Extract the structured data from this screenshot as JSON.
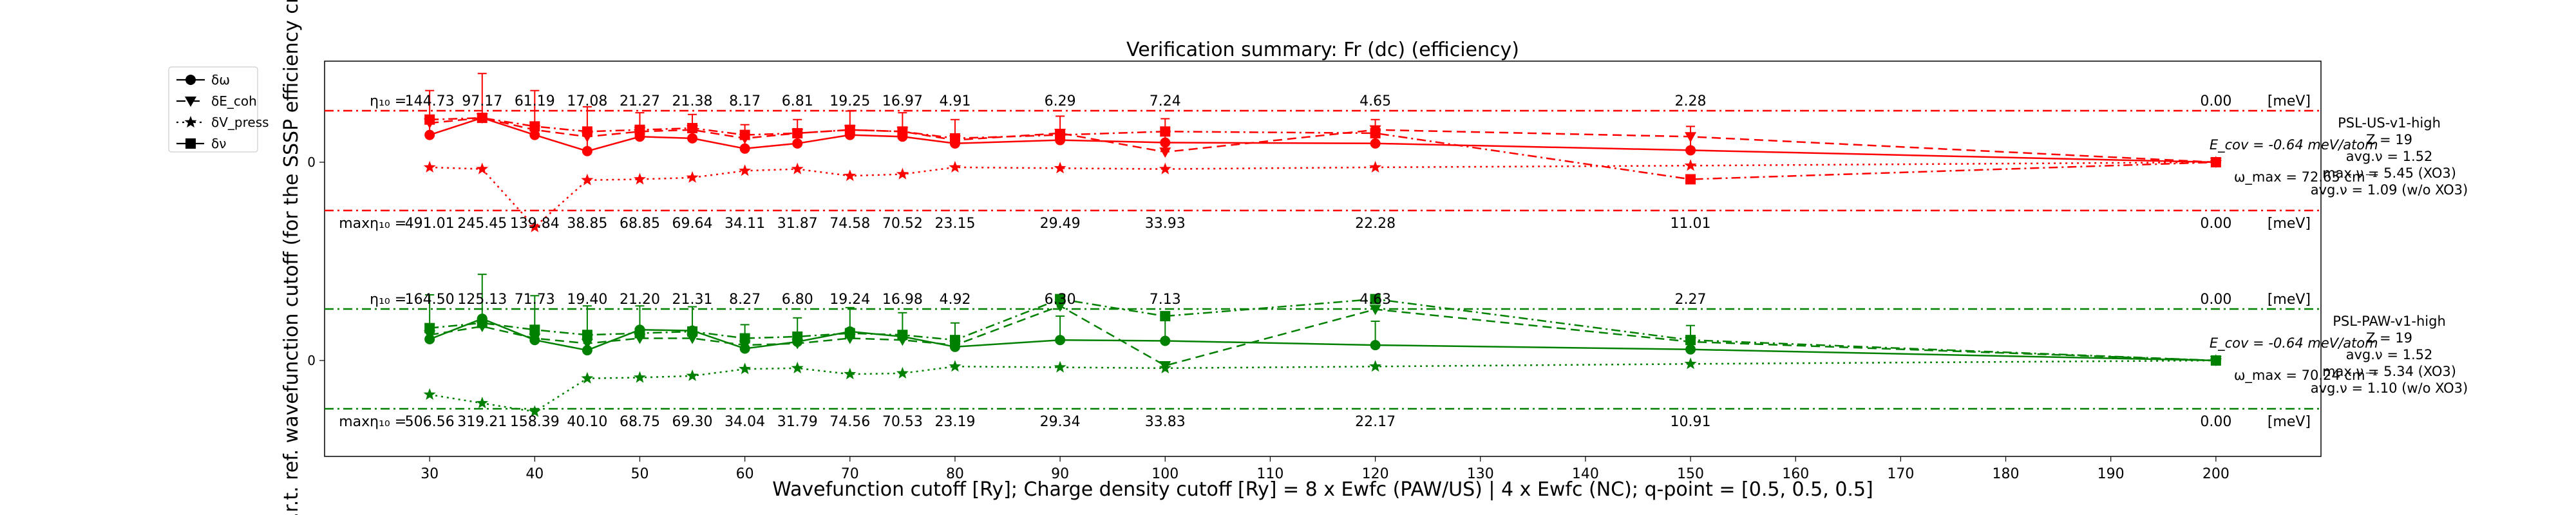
{
  "chart_data": {
    "type": "line",
    "title": "Verification summary: Fr (dc) (efficiency)",
    "xlabel": "Wavefunction cutoff [Ry]; Charge density cutoff [Ry] = 8 x Ewfc (PAW/US) | 4 x Ewfc (NC); q-point = [0.5, 0.5, 0.5]",
    "ylabel": "w.r.t. ref. wavefunction cutoff (for the SSSP efficiency crit",
    "xlim": [
      20,
      210
    ],
    "x_ticks": [
      30,
      40,
      50,
      60,
      70,
      80,
      90,
      100,
      110,
      120,
      130,
      140,
      150,
      160,
      170,
      180,
      190,
      200
    ],
    "y_tick_labels": [
      "0",
      "0"
    ],
    "legend": {
      "placement": "top-left-outside",
      "entries": [
        {
          "label": "δω",
          "style": "solid",
          "marker": "circle"
        },
        {
          "label": "δE_coh",
          "style": "dashed",
          "marker": "triangle"
        },
        {
          "label": "δV_press",
          "style": "dotted",
          "marker": "star"
        },
        {
          "label": "δν",
          "style": "dashdot",
          "marker": "square"
        }
      ]
    },
    "x": [
      30,
      35,
      40,
      45,
      50,
      55,
      60,
      65,
      70,
      75,
      80,
      90,
      100,
      120,
      150,
      200
    ],
    "panels": [
      {
        "name": "PSL-US-v1-high",
        "color": "#ff0000",
        "info": [
          "PSL-US-v1-high",
          "Z = 19",
          "avg.ν = 1.52",
          "max.ν = 5.45 (XO3)",
          "avg.ν = 1.09 (w/o XO3)"
        ],
        "ecov_label": "E_cov = -0.64 meV/atom",
        "wmax_label": "ω_max = 72.65 cm⁻¹",
        "eta_prefix": "η₁₀ =",
        "max_eta_prefix": "maxη₁₀ =",
        "eta_values": [
          "144.73",
          "97.17",
          "61.19",
          "17.08",
          "21.27",
          "21.38",
          "8.17",
          "6.81",
          "19.25",
          "16.97",
          "4.91",
          "6.29",
          "7.24",
          "4.65",
          "2.28",
          "0.00"
        ],
        "max_eta_values": [
          "491.01",
          "245.45",
          "139.84",
          "38.85",
          "68.85",
          "69.64",
          "34.11",
          "31.87",
          "74.58",
          "70.52",
          "23.15",
          "29.49",
          "33.93",
          "22.28",
          "11.01",
          "0.00"
        ],
        "unit": "[meV]",
        "series": [
          {
            "name": "δω",
            "values": [
              1.6,
              2.6,
              1.6,
              0.65,
              1.5,
              1.4,
              0.8,
              1.1,
              1.6,
              1.5,
              1.1,
              1.3,
              1.15,
              1.1,
              0.7,
              0.0
            ]
          },
          {
            "name": "δE_coh",
            "values": [
              2.3,
              2.6,
              1.9,
              1.5,
              1.8,
              1.9,
              1.4,
              1.7,
              1.9,
              1.8,
              1.3,
              1.7,
              0.6,
              1.9,
              1.5,
              0.0
            ]
          },
          {
            "name": "δV_press",
            "values": [
              -0.3,
              -0.4,
              -3.8,
              -1.05,
              -1.0,
              -0.9,
              -0.5,
              -0.4,
              -0.8,
              -0.7,
              -0.3,
              -0.35,
              -0.4,
              -0.3,
              -0.2,
              0.0
            ]
          },
          {
            "name": "δν",
            "values": [
              2.5,
              2.6,
              2.1,
              1.8,
              1.9,
              2.0,
              1.6,
              1.7,
              1.9,
              1.8,
              1.4,
              1.6,
              1.8,
              1.7,
              -1.0,
              0.0
            ]
          }
        ]
      },
      {
        "name": "PSL-PAW-v1-high",
        "color": "#008000",
        "info": [
          "PSL-PAW-v1-high",
          "Z = 19",
          "avg.ν = 1.52",
          "max.ν = 5.34 (XO3)",
          "avg.ν = 1.10 (w/o XO3)"
        ],
        "ecov_label": "E_cov = -0.64 meV/atom",
        "wmax_label": "ω_max = 70.24 cm⁻¹",
        "eta_prefix": "η₁₀ =",
        "max_eta_prefix": "maxη₁₀ =",
        "eta_values": [
          "164.50",
          "125.13",
          "71.73",
          "19.40",
          "21.20",
          "21.31",
          "8.27",
          "6.80",
          "19.24",
          "16.98",
          "4.92",
          "6.30",
          "7.13",
          "4.63",
          "2.27",
          "0.00"
        ],
        "max_eta_values": [
          "506.56",
          "319.21",
          "158.39",
          "40.10",
          "68.75",
          "69.30",
          "34.04",
          "31.79",
          "74.56",
          "70.53",
          "23.19",
          "29.34",
          "33.83",
          "22.17",
          "10.91",
          "0.00"
        ],
        "unit": "[meV]",
        "series": [
          {
            "name": "δω",
            "values": [
              1.25,
              2.45,
              1.2,
              0.6,
              1.8,
              1.75,
              0.7,
              1.1,
              1.7,
              1.4,
              0.8,
              1.2,
              1.15,
              0.9,
              0.65,
              0.0
            ]
          },
          {
            "name": "δE_coh",
            "values": [
              1.5,
              2.0,
              1.3,
              1.0,
              1.3,
              1.3,
              0.9,
              1.0,
              1.3,
              1.2,
              0.9,
              3.2,
              -0.3,
              3.0,
              1.1,
              0.0
            ]
          },
          {
            "name": "δV_press",
            "values": [
              -2.0,
              -2.5,
              -3.0,
              -1.05,
              -1.0,
              -0.9,
              -0.5,
              -0.45,
              -0.8,
              -0.75,
              -0.35,
              -0.4,
              -0.45,
              -0.35,
              -0.2,
              0.0
            ]
          },
          {
            "name": "δν",
            "values": [
              1.9,
              2.2,
              1.8,
              1.5,
              1.6,
              1.7,
              1.3,
              1.4,
              1.6,
              1.5,
              1.2,
              3.6,
              2.6,
              3.6,
              1.2,
              0.0
            ]
          }
        ]
      }
    ]
  }
}
